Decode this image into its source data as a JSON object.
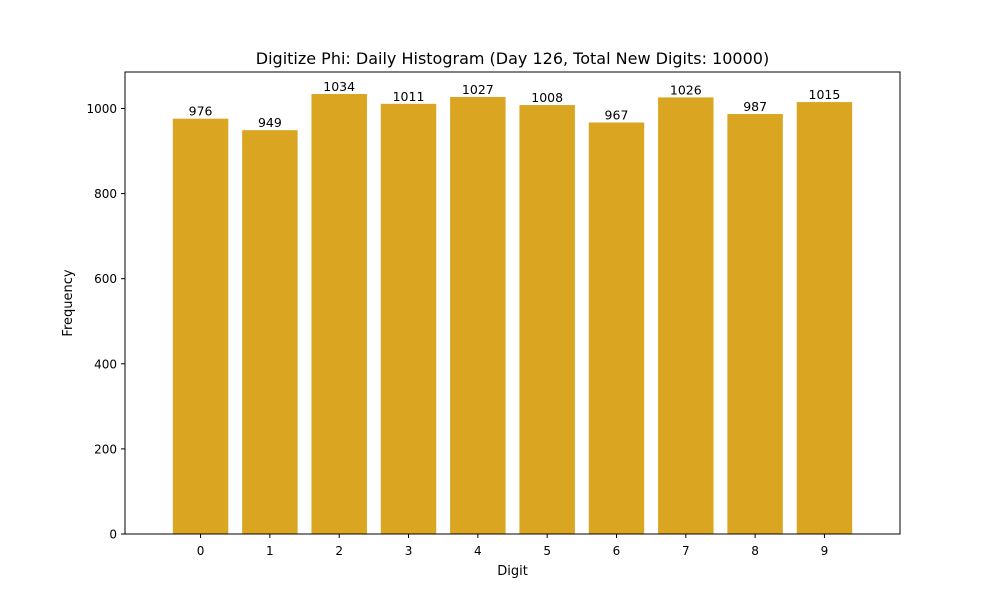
{
  "chart_data": {
    "type": "bar",
    "title": "Digitize Phi: Daily Histogram (Day 126, Total New Digits: 10000)",
    "xlabel": "Digit",
    "ylabel": "Frequency",
    "categories": [
      "0",
      "1",
      "2",
      "3",
      "4",
      "5",
      "6",
      "7",
      "8",
      "9"
    ],
    "values": [
      976,
      949,
      1034,
      1011,
      1027,
      1008,
      967,
      1026,
      987,
      1015
    ],
    "data_labels": [
      "976",
      "949",
      "1034",
      "1011",
      "1027",
      "1008",
      "967",
      "1026",
      "987",
      "1015"
    ],
    "ylim": [
      0,
      1085.7
    ],
    "yticks": [
      0,
      200,
      400,
      600,
      800,
      1000
    ],
    "bar_color": "#daa520",
    "grid": false,
    "legend": false
  }
}
